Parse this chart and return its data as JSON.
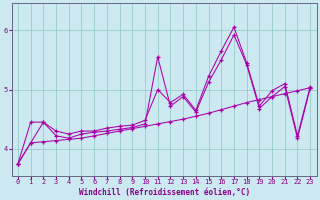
{
  "xlabel": "Windchill (Refroidissement éolien,°C)",
  "ylabel": "",
  "bg_color": "#cce8f0",
  "line_color": "#aa00aa",
  "grid_color": "#99cccc",
  "xlim": [
    -0.5,
    23.5
  ],
  "ylim": [
    3.55,
    6.45
  ],
  "yticks": [
    4,
    5,
    6
  ],
  "xticks": [
    0,
    1,
    2,
    3,
    4,
    5,
    6,
    7,
    8,
    9,
    10,
    11,
    12,
    13,
    14,
    15,
    16,
    17,
    18,
    19,
    20,
    21,
    22,
    23
  ],
  "line1_x": [
    0,
    1,
    2,
    3,
    4,
    5,
    6,
    7,
    8,
    9,
    10,
    11,
    12,
    13,
    14,
    15,
    16,
    17,
    18,
    19,
    20,
    21,
    22,
    23
  ],
  "line1_y": [
    3.75,
    4.45,
    4.45,
    4.3,
    4.25,
    4.3,
    4.3,
    4.35,
    4.38,
    4.4,
    4.48,
    5.0,
    4.78,
    4.92,
    4.65,
    5.22,
    5.65,
    6.05,
    5.45,
    4.72,
    4.98,
    5.1,
    4.22,
    5.05
  ],
  "line2_x": [
    0,
    1,
    2,
    3,
    4,
    5,
    6,
    7,
    8,
    9,
    10,
    11,
    12,
    13,
    14,
    15,
    16,
    17,
    18,
    19,
    20,
    21,
    22,
    23
  ],
  "line2_y": [
    3.75,
    4.1,
    4.45,
    4.22,
    4.18,
    4.25,
    4.28,
    4.3,
    4.33,
    4.36,
    4.42,
    5.55,
    4.72,
    4.88,
    4.62,
    5.12,
    5.5,
    5.92,
    5.42,
    4.68,
    4.88,
    5.05,
    4.18,
    5.02
  ],
  "line3_x": [
    0,
    1,
    2,
    3,
    4,
    5,
    6,
    7,
    8,
    9,
    10,
    11,
    12,
    13,
    14,
    15,
    16,
    17,
    18,
    19,
    20,
    21,
    22,
    23
  ],
  "line3_y": [
    3.75,
    4.1,
    4.12,
    4.14,
    4.16,
    4.18,
    4.22,
    4.26,
    4.3,
    4.34,
    4.38,
    4.42,
    4.46,
    4.5,
    4.55,
    4.6,
    4.66,
    4.72,
    4.78,
    4.83,
    4.88,
    4.93,
    4.98,
    5.03
  ]
}
